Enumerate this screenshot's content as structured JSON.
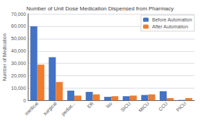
{
  "chart_data": {
    "type": "bar",
    "title": "Number of Unit Dose Medication Dispensed from Pharmacy",
    "categories": [
      "medical",
      "surgical",
      "pediat...",
      "ER",
      "Iso",
      "SICU",
      "MICU",
      "CCU",
      "PICU"
    ],
    "series": [
      {
        "name": "Before Automation",
        "color": "#4472C4",
        "values": [
          60000,
          35000,
          8000,
          7000,
          3000,
          3500,
          4500,
          7500,
          500
        ]
      },
      {
        "name": "After Automation",
        "color": "#ED7D31",
        "values": [
          29000,
          15000,
          4000,
          5000,
          3500,
          4000,
          5000,
          2000,
          2000
        ]
      }
    ],
    "ylabel": "Number of Medication",
    "ylim": [
      0,
      70000
    ],
    "yticks": [
      0,
      {
        "value": 10000,
        "label": "10,000"
      },
      {
        "value": 20000,
        "label": "20,000"
      },
      {
        "value": 30000,
        "label": "30,000"
      },
      {
        "value": 40000,
        "label": "40,000"
      },
      {
        "value": 50000,
        "label": "50,000"
      },
      {
        "value": 60000,
        "label": "60,000"
      },
      {
        "value": 70000,
        "label": "70,000"
      }
    ],
    "grid": true,
    "legend": "upper right"
  }
}
